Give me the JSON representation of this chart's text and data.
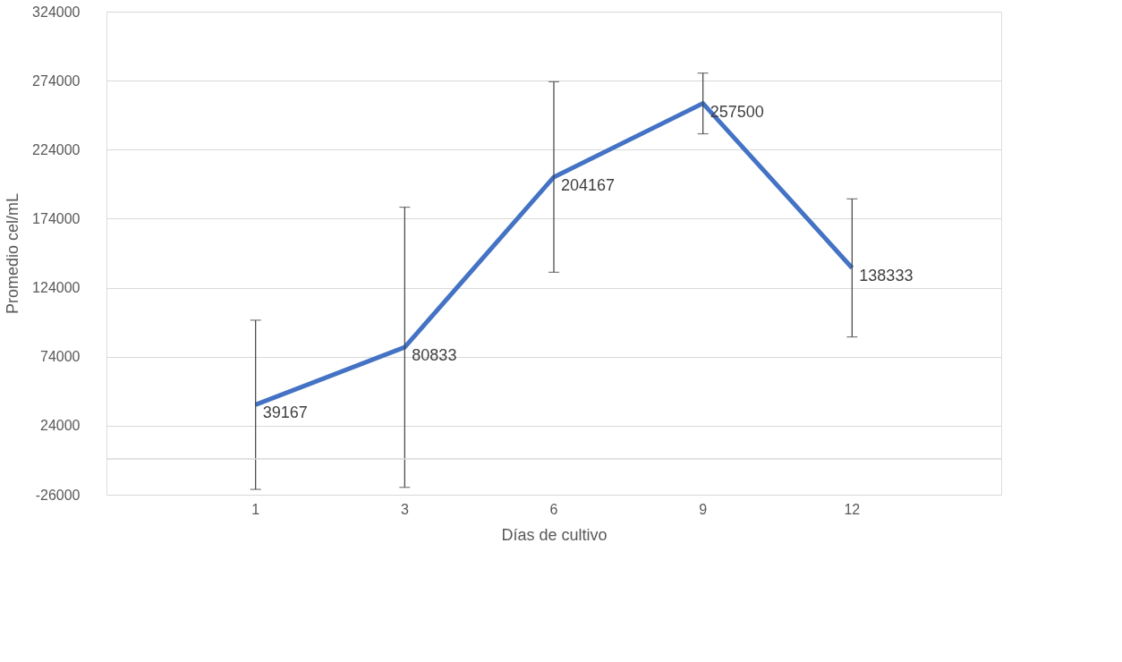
{
  "chart_data": {
    "type": "line",
    "xlabel": "Días de cultivo",
    "ylabel": "Promedio cel/mL",
    "categories": [
      "1",
      "3",
      "6",
      "9",
      "12"
    ],
    "series": [
      {
        "color": "#4472c4",
        "values": [
          39167,
          80833,
          204167,
          257500,
          138333
        ],
        "errors": [
          61300,
          101500,
          69000,
          22000,
          50000
        ]
      }
    ],
    "ylim": [
      -26000,
      324000
    ],
    "yticks": [
      -26000,
      24000,
      74000,
      124000,
      174000,
      224000,
      274000,
      324000
    ],
    "ref_lines": [
      {
        "axis": "y",
        "value": 0,
        "color": "#d9d9d9"
      }
    ],
    "data_labels": true,
    "grid": "y",
    "marker": "none",
    "line_style": "solid"
  }
}
